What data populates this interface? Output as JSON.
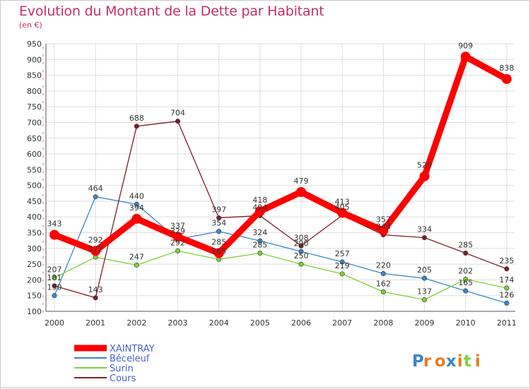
{
  "chart_data": {
    "type": "line",
    "title": "Evolution du Montant de la Dette par Habitant",
    "subtitle": "(en €)",
    "categories": [
      "2000",
      "2001",
      "2002",
      "2003",
      "2004",
      "2005",
      "2006",
      "2007",
      "2008",
      "2009",
      "2010",
      "2011"
    ],
    "ylim": [
      100,
      950
    ],
    "yticks": [
      100,
      150,
      200,
      250,
      300,
      350,
      400,
      450,
      500,
      550,
      600,
      650,
      700,
      750,
      800,
      850,
      900,
      950
    ],
    "grid": true,
    "legend_position": "bottom-left",
    "series": [
      {
        "name": "XAINTRAY",
        "color": "#ff0000",
        "values": [
          343,
          292,
          394,
          337,
          285,
          418,
          479,
          413,
          357,
          529,
          909,
          838
        ],
        "labels": [
          "343",
          "292",
          "394",
          "337",
          "285",
          "418",
          "479",
          "413",
          "357",
          "529",
          "909",
          "838"
        ]
      },
      {
        "name": "Béceleuf",
        "color": "#3a87c8",
        "values": [
          150,
          464,
          440,
          329,
          354,
          324,
          290,
          257,
          220,
          205,
          165,
          126
        ],
        "labels": [
          "150",
          "464",
          "440",
          "329",
          "354",
          "324",
          "290",
          "257",
          "220",
          "205",
          "165",
          "126"
        ]
      },
      {
        "name": "Surin",
        "color": "#7ed03a",
        "values": [
          207,
          272,
          247,
          292,
          265,
          285,
          250,
          219,
          162,
          137,
          202,
          174
        ],
        "labels": [
          "207",
          "272",
          "247",
          "292",
          "265",
          "285",
          "250",
          "219",
          "162",
          "137",
          "202",
          "174"
        ]
      },
      {
        "name": "Cours",
        "color": "#7b1f2a",
        "values": [
          181,
          143,
          688,
          704,
          397,
          404,
          308,
          405,
          343,
          334,
          285,
          235
        ],
        "labels": [
          "181",
          "143",
          "688",
          "704",
          "397",
          "404",
          "308",
          "405",
          "343",
          "334",
          "285",
          "235"
        ]
      }
    ]
  },
  "logo": {
    "text": "Proxiti"
  }
}
